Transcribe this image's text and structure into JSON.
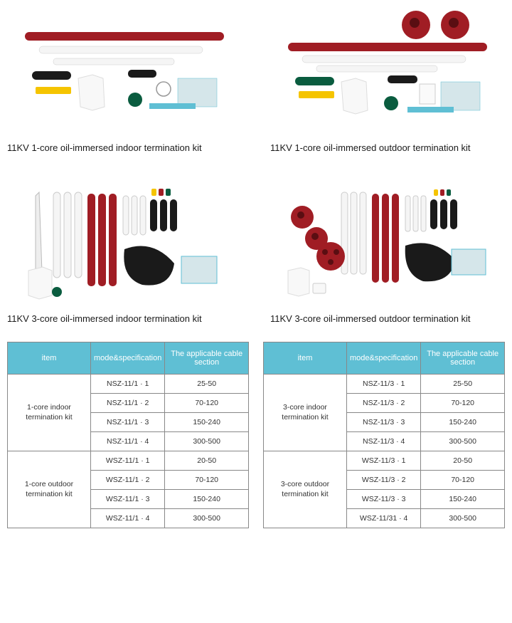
{
  "products": [
    {
      "label": "11KV 1-core oil-immersed indoor termination kit"
    },
    {
      "label": "11KV 1-core oil-immersed outdoor termination kit"
    },
    {
      "label": "11KV 3-core oil-immersed indoor termination kit"
    },
    {
      "label": "11KV 3-core oil-immersed outdoor termination kit"
    }
  ],
  "tables": [
    {
      "columns": [
        "item",
        "mode&specification",
        "The applicable cable section"
      ],
      "groups": [
        {
          "label": "1-core indoor termination kit",
          "rows": [
            [
              "NSZ-11/1 · 1",
              "25-50"
            ],
            [
              "NSZ-11/1 · 2",
              "70-120"
            ],
            [
              "NSZ-11/1 · 3",
              "150-240"
            ],
            [
              "NSZ-11/1 · 4",
              "300-500"
            ]
          ]
        },
        {
          "label": "1-core outdoor termination kit",
          "rows": [
            [
              "WSZ-11/1 · 1",
              "20-50"
            ],
            [
              "WSZ-11/1 · 2",
              "70-120"
            ],
            [
              "WSZ-11/1 · 3",
              "150-240"
            ],
            [
              "WSZ-11/1 · 4",
              "300-500"
            ]
          ]
        }
      ]
    },
    {
      "columns": [
        "item",
        "mode&specification",
        "The applicable cable section"
      ],
      "groups": [
        {
          "label": "3-core indoor termination kit",
          "rows": [
            [
              "NSZ-11/3 · 1",
              "25-50"
            ],
            [
              "NSZ-11/3 · 2",
              "70-120"
            ],
            [
              "NSZ-11/3 · 3",
              "150-240"
            ],
            [
              "NSZ-11/3 · 4",
              "300-500"
            ]
          ]
        },
        {
          "label": "3-core outdoor termination kit",
          "rows": [
            [
              "WSZ-11/3 · 1",
              "20-50"
            ],
            [
              "WSZ-11/3 · 2",
              "70-120"
            ],
            [
              "WSZ-11/3 · 3",
              "150-240"
            ],
            [
              "WSZ-11/31 · 4",
              "300-500"
            ]
          ]
        }
      ]
    }
  ],
  "colors": {
    "header_bg": "#5fbfd4",
    "header_text": "#ffffff",
    "border": "#888888",
    "text": "#333333",
    "red": "#a01d24",
    "darkred": "#8b1a1f",
    "white": "#f5f5f5",
    "dark": "#1a1a1a",
    "yellow": "#f5c400",
    "green": "#0a5c3f",
    "blue_doc": "#d5e6ea"
  }
}
